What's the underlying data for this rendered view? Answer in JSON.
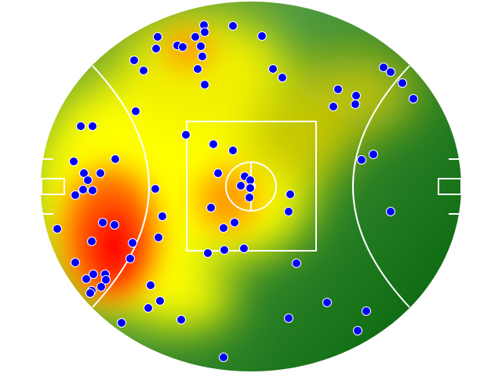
{
  "field": {
    "type": "australian-football-oval",
    "colors": {
      "low": "#0b6a10",
      "mid_low": "#3f9440",
      "mid": "#ffff00",
      "high": "#ff9900",
      "peak": "#ff0000",
      "lines": "#ffffff",
      "markers": "#0000ff",
      "marker_outline": "#ffffff"
    }
  }
}
